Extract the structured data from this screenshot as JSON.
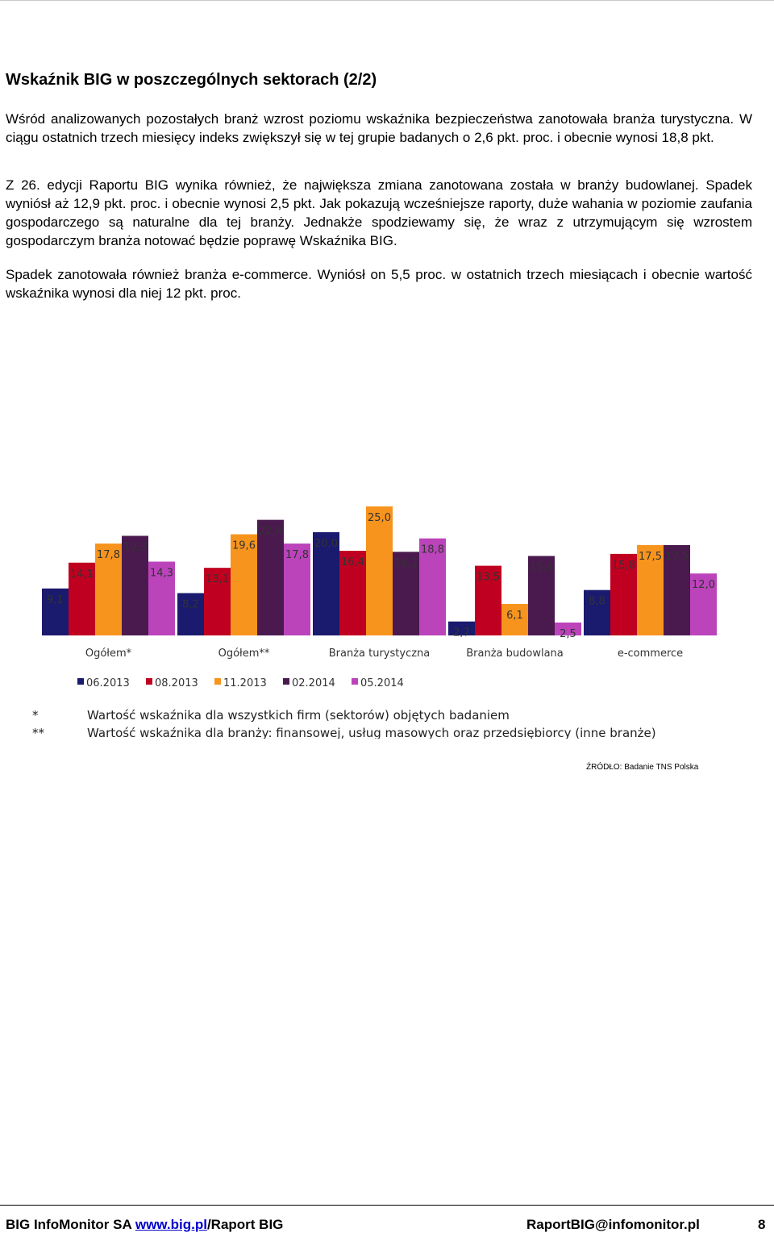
{
  "heading": "Wskaźnik BIG w poszczególnych sektorach (2/2)",
  "paragraphs": [
    "Wśród analizowanych pozostałych branż wzrost poziomu wskaźnika bezpieczeństwa zanotowała branża turystyczna. W ciągu ostatnich trzech miesięcy indeks zwiększył się w tej grupie badanych o 2,6 pkt. proc. i obecnie wynosi 18,8 pkt.",
    "Z 26. edycji Raportu BIG wynika również, że największa zmiana zanotowana została w branży budowlanej. Spadek wyniósł aż 12,9 pkt. proc. i obecnie wynosi 2,5 pkt. Jak pokazują wcześniejsze raporty, duże wahania w poziomie zaufania gospodarczego są naturalne dla tej branży. Jednakże spodziewamy się, że wraz z utrzymującym się wzrostem gospodarczym branża notować będzie poprawę Wskaźnika BIG.",
    "Spadek zanotowała również branża e-commerce. Wyniósł on 5,5 proc. w ostatnich trzech miesiącach i obecnie wartość wskaźnika wynosi dla niej 12 pkt. proc."
  ],
  "chart_data": {
    "type": "bar",
    "categories": [
      "Ogółem*",
      "Ogółem**",
      "Branża turystyczna",
      "Branża budowlana",
      "e-commerce"
    ],
    "series": [
      {
        "name": "06.2013",
        "color": "#1a1a6e",
        "values": [
          9.1,
          8.2,
          20.0,
          2.7,
          8.8
        ]
      },
      {
        "name": "08.2013",
        "color": "#c00020",
        "values": [
          14.1,
          13.1,
          16.4,
          13.5,
          15.8
        ]
      },
      {
        "name": "11.2013",
        "color": "#f7941d",
        "values": [
          17.8,
          19.6,
          25.0,
          6.1,
          17.5
        ]
      },
      {
        "name": "02.2014",
        "color": "#4a1a4e",
        "values": [
          19.3,
          22.4,
          16.2,
          15.4,
          17.5
        ]
      },
      {
        "name": "05.2014",
        "color": "#bb44bb",
        "values": [
          14.3,
          17.8,
          18.8,
          2.5,
          12.0
        ]
      }
    ],
    "labels": [
      [
        "9,1",
        "14,1",
        "17,8",
        "19,3",
        "14,3"
      ],
      [
        "8,2",
        "13,1",
        "19,6",
        "22,4",
        "17,8"
      ],
      [
        "20,0",
        "16,4",
        "25,0",
        "16,2",
        "18,8"
      ],
      [
        "2,7",
        "13,5",
        "6,1",
        "15,4",
        "2,5"
      ],
      [
        "8,8",
        "15,8",
        "17,5",
        "17,5",
        "12,0"
      ]
    ],
    "ylim": [
      0,
      25
    ],
    "grid": false,
    "legend_position": "bottom"
  },
  "notes": [
    {
      "mark": "*",
      "text": "Wartość wskaźnika dla wszystkich firm (sektorów) objętych badaniem"
    },
    {
      "mark": "**",
      "text": "Wartość wskaźnika dla branży: finansowej, usług masowych oraz przedsiębiorcy (inne branże)"
    }
  ],
  "source": "ŹRÓDŁO: Badanie TNS Polska",
  "footer": {
    "company": "BIG InfoMonitor SA ",
    "link": "www.big.pl",
    "suffix": "/Raport BIG",
    "email": "RaportBIG@infomonitor.pl",
    "page": "8"
  }
}
